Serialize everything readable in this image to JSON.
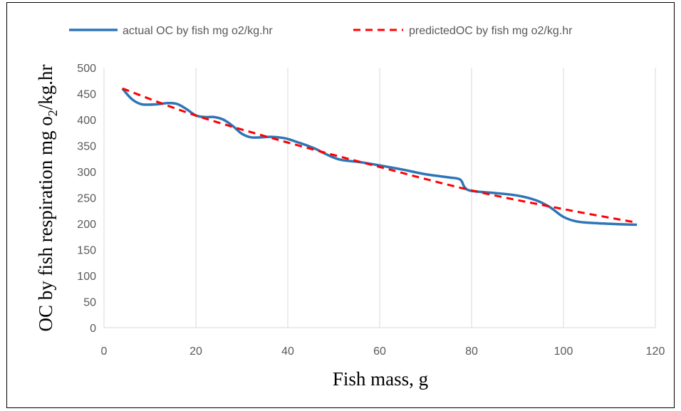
{
  "chart_data": {
    "type": "line",
    "xlabel": "Fish mass, g",
    "ylabel_main": "OC by fish respiration mg o",
    "ylabel_sub": "2",
    "ylabel_tail": "/kg.hr",
    "xlim": [
      0,
      120
    ],
    "ylim": [
      0,
      500
    ],
    "x_ticks": [
      0,
      20,
      40,
      60,
      80,
      100,
      120
    ],
    "y_ticks": [
      0,
      50,
      100,
      150,
      200,
      250,
      300,
      350,
      400,
      450,
      500
    ],
    "grid": {
      "vertical": true,
      "horizontal": false
    },
    "legend_position": "top",
    "series": [
      {
        "name": "actual OC by fish mg o2/kg.hr",
        "style": "solid",
        "color": "#2E75B6",
        "x": [
          4,
          6,
          8,
          10,
          12,
          14,
          16,
          18,
          20,
          22,
          24,
          26,
          28,
          30,
          32,
          34,
          36,
          38,
          40,
          42,
          44,
          46,
          48,
          50,
          52,
          56,
          60,
          65,
          70,
          75,
          77.5,
          78.5,
          80,
          85,
          90,
          94,
          97,
          100,
          103,
          107,
          112,
          116
        ],
        "y": [
          460,
          440,
          430,
          429,
          430,
          432,
          430,
          420,
          408,
          405,
          405,
          400,
          388,
          373,
          366,
          366,
          367,
          366,
          363,
          357,
          351,
          344,
          335,
          327,
          322,
          318,
          312,
          304,
          295,
          289,
          285,
          270,
          263,
          259,
          254,
          245,
          232,
          213,
          204,
          201,
          199,
          198
        ]
      },
      {
        "name": "predictedOC by fish mg o2/kg.hr",
        "style": "dashed",
        "color": "#FF0000",
        "x": [
          4,
          20,
          40,
          60,
          80,
          100,
          116
        ],
        "y": [
          460,
          408,
          356,
          309,
          264,
          228,
          202
        ]
      }
    ]
  }
}
